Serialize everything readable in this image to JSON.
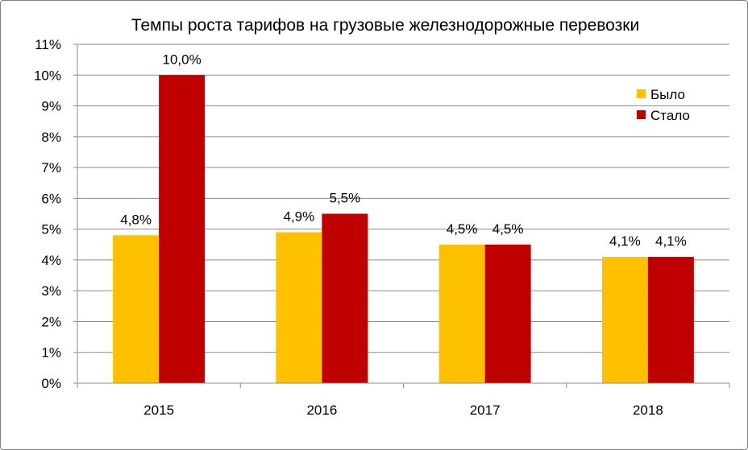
{
  "chart_data": {
    "type": "bar",
    "title": "Темпы роста тарифов на грузовые железнодорожные перевозки",
    "categories": [
      "2015",
      "2016",
      "2017",
      "2018"
    ],
    "series": [
      {
        "name": "Было",
        "color": "#FFC000",
        "values": [
          4.8,
          4.9,
          4.5,
          4.1
        ],
        "labels": [
          "4,8%",
          "4,9%",
          "4,5%",
          "4,1%"
        ]
      },
      {
        "name": "Стало",
        "color": "#C00000",
        "values": [
          10.0,
          5.5,
          4.5,
          4.1
        ],
        "labels": [
          "10,0%",
          "5,5%",
          "4,5%",
          "4,1%"
        ]
      }
    ],
    "y_ticks": [
      "0%",
      "1%",
      "2%",
      "3%",
      "4%",
      "5%",
      "6%",
      "7%",
      "8%",
      "9%",
      "10%",
      "11%"
    ],
    "ylim": [
      0,
      11
    ],
    "grid": true,
    "legend_position": "top-right"
  }
}
